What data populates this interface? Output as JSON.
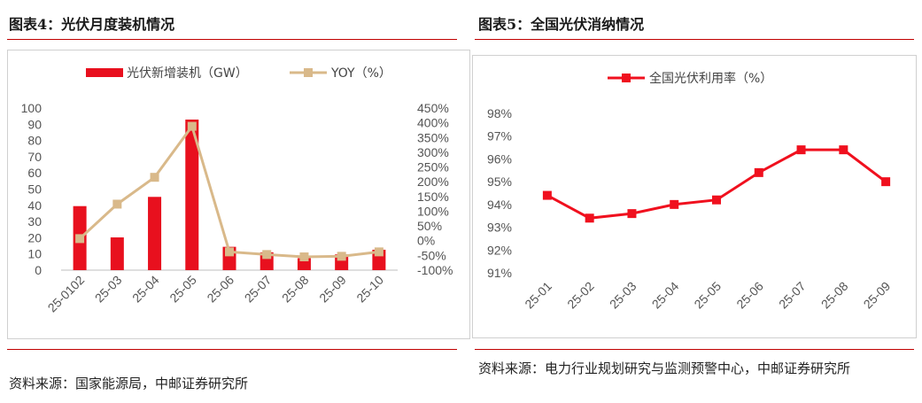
{
  "figure_left": {
    "title": "图表4：光伏月度装机情况",
    "source": "资料来源：国家能源局，中邮证券研究所"
  },
  "figure_right": {
    "title": "图表5：全国光伏消纳情况",
    "source": "资料来源：电力行业规划研究与监测预警中心，中邮证券研究所"
  },
  "colors": {
    "bar": "#e8101e",
    "yoy_line": "#d9b98a",
    "util_line": "#f0101e",
    "rule": "#c00000"
  },
  "chart_data": [
    {
      "type": "bar",
      "categories": [
        "25-0102",
        "25-03",
        "25-04",
        "25-05",
        "25-06",
        "25-07",
        "25-08",
        "25-09",
        "25-10"
      ],
      "series": [
        {
          "name": "光伏新增装机（GW）",
          "type": "bar",
          "axis": "left",
          "values": [
            39.5,
            20.2,
            45.2,
            92.9,
            14.4,
            11.0,
            7.4,
            9.7,
            12.6
          ]
        },
        {
          "name": "YOY（%）",
          "type": "line",
          "axis": "right",
          "values": [
            7,
            124,
            215,
            388,
            -38,
            -47,
            -55,
            -53,
            -38
          ]
        }
      ],
      "y_left": {
        "min": 0,
        "max": 100,
        "ticks": [
          "0",
          "10",
          "20",
          "30",
          "40",
          "50",
          "60",
          "70",
          "80",
          "90",
          "100"
        ]
      },
      "y_right": {
        "min": -100,
        "max": 450,
        "ticks": [
          "-100%",
          "-50%",
          "0%",
          "50%",
          "100%",
          "150%",
          "200%",
          "250%",
          "300%",
          "350%",
          "400%",
          "450%"
        ]
      },
      "legend_position": "top",
      "grid": false
    },
    {
      "type": "line",
      "categories": [
        "25-01",
        "25-02",
        "25-03",
        "25-04",
        "25-05",
        "25-06",
        "25-07",
        "25-08",
        "25-09"
      ],
      "series": [
        {
          "name": "全国光伏利用率（%）",
          "values": [
            94.4,
            93.4,
            93.6,
            94.0,
            94.2,
            95.4,
            96.4,
            96.4,
            95.0
          ]
        }
      ],
      "y": {
        "min": 91,
        "max": 98,
        "ticks": [
          "91%",
          "92%",
          "93%",
          "94%",
          "95%",
          "96%",
          "97%",
          "98%"
        ]
      },
      "legend_position": "top",
      "grid": false
    }
  ]
}
